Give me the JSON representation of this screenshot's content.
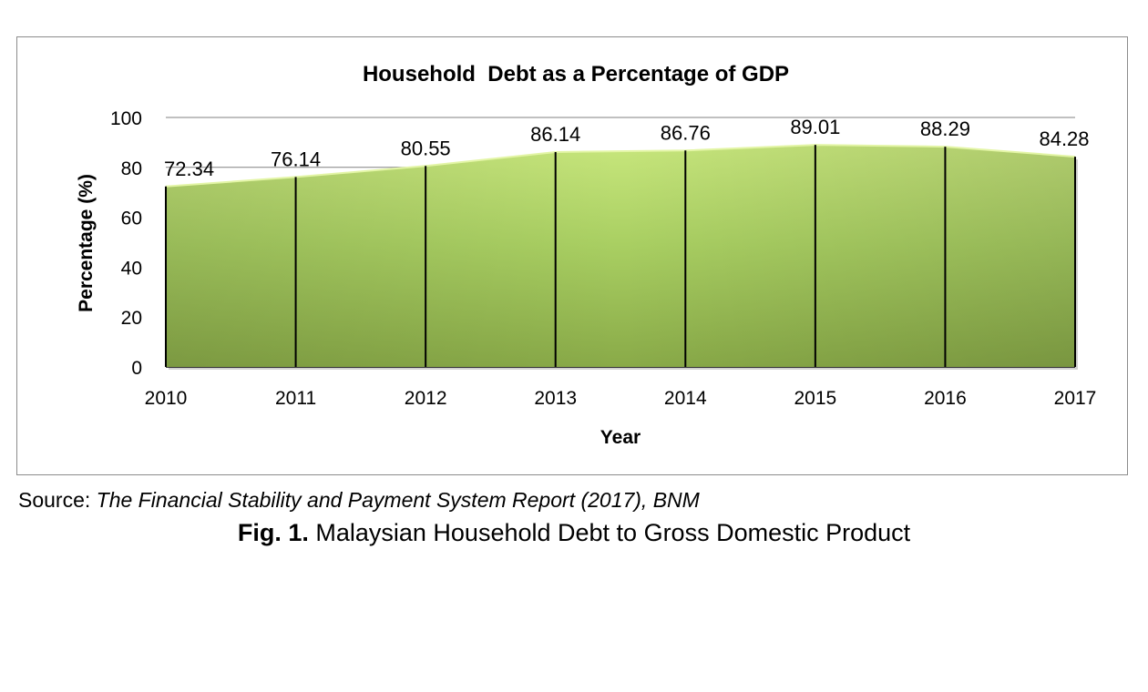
{
  "chart_data": {
    "type": "area",
    "title": "Household  Debt as a Percentage of GDP",
    "xlabel": "Year",
    "ylabel": "Percentage (%)",
    "ylim": [
      0,
      100
    ],
    "yticks": [
      "0",
      "20",
      "40",
      "60",
      "80",
      "100"
    ],
    "categories": [
      "2010",
      "2011",
      "2012",
      "2013",
      "2014",
      "2015",
      "2016",
      "2017"
    ],
    "values": [
      72.34,
      76.14,
      80.55,
      86.14,
      86.76,
      89.01,
      88.29,
      84.28
    ],
    "data_labels": [
      "72.34",
      "76.14",
      "80.55",
      "86.14",
      "86.76",
      "89.01",
      "88.29",
      "84.28"
    ],
    "grid": "horizontal major gridlines",
    "legend": "none",
    "colors": {
      "fill_top": "#c7e67c",
      "fill_mid": "#a9cf62",
      "fill_bottom": "#89aa48",
      "gridline": "#808080",
      "dropline": "#000000"
    }
  },
  "source": {
    "prefix": "Source: ",
    "text": "The Financial Stability and Payment System Report (2017), BNM"
  },
  "caption": {
    "label": "Fig. 1.",
    "text": " Malaysian Household Debt to Gross Domestic Product"
  }
}
